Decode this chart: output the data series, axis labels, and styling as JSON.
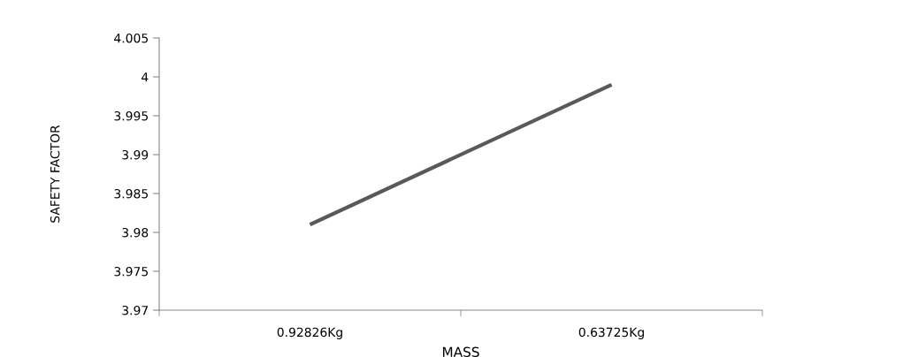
{
  "chart_data": {
    "type": "line",
    "xlabel": "MASS",
    "ylabel": "SAFETY FACTOR",
    "categories": [
      "0.92826Kg",
      "0.63725Kg"
    ],
    "series": [
      {
        "color": "#595959",
        "values": [
          3.981,
          3.999
        ]
      }
    ],
    "ylim": [
      3.97,
      4.005
    ],
    "yticks": [
      3.97,
      3.975,
      3.98,
      3.985,
      3.99,
      3.995,
      4,
      4.005
    ],
    "grid": false,
    "legend": false,
    "marker": "none",
    "line_style": "solid"
  }
}
